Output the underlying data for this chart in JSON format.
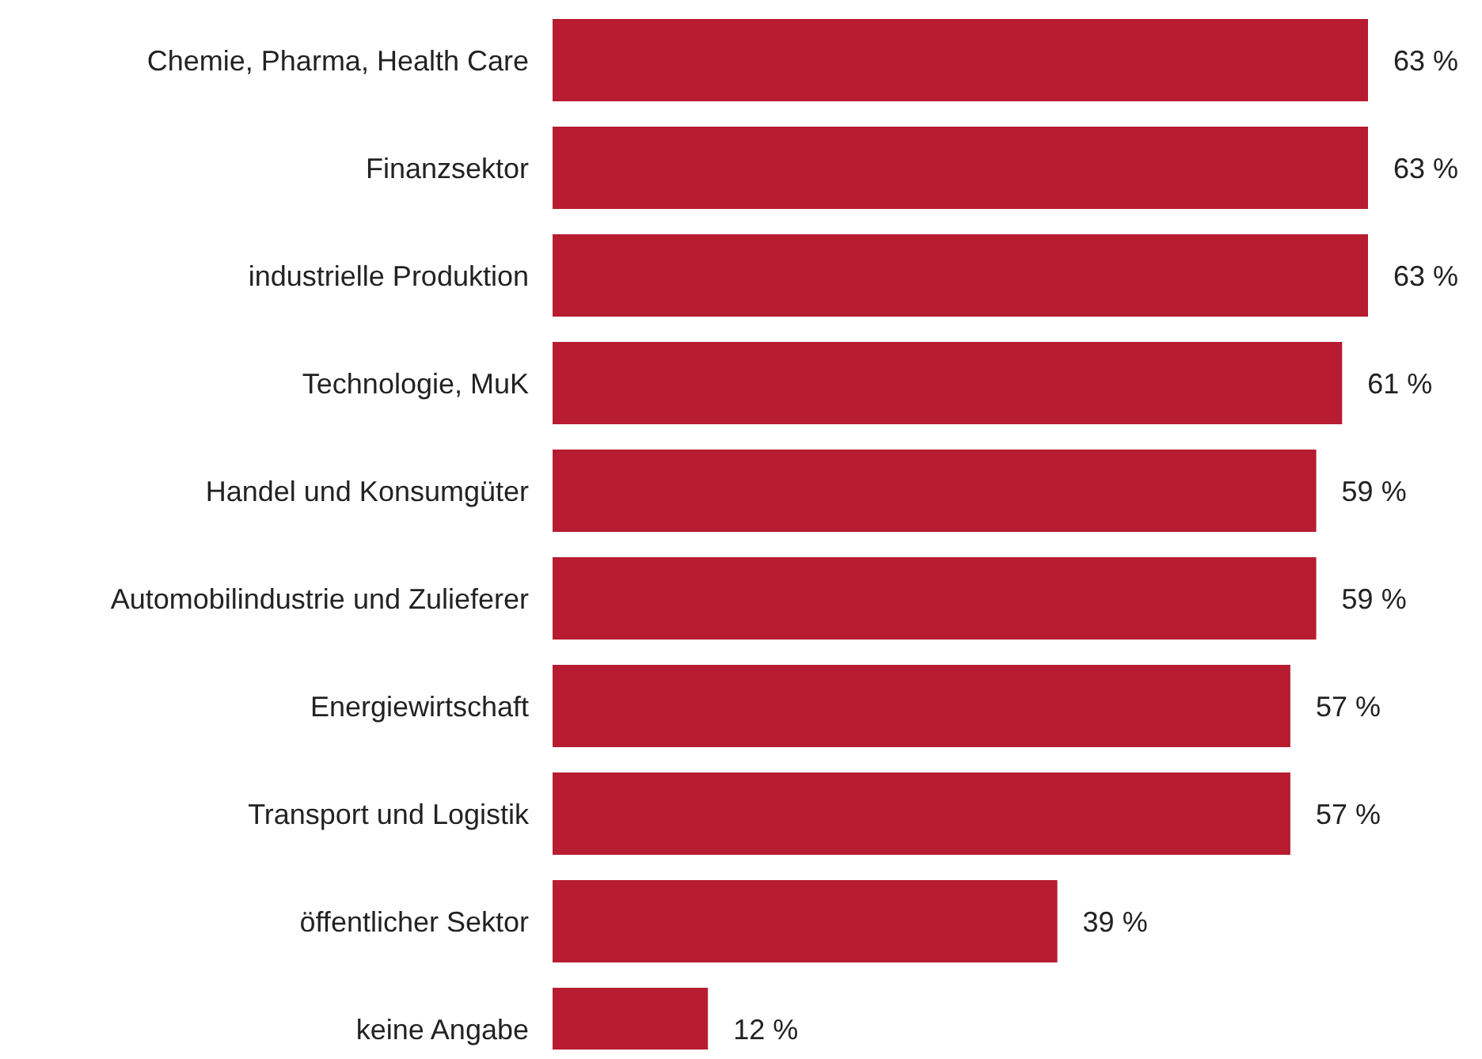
{
  "chart_data": {
    "type": "bar",
    "orientation": "horizontal",
    "categories": [
      "Chemie, Pharma, Health Care",
      "Finanzsektor",
      "industrielle Produktion",
      "Technologie, MuK",
      "Handel und Konsumgüter",
      "Automobilindustrie und Zulieferer",
      "Energiewirtschaft",
      "Transport und Logistik",
      "öffentlicher Sektor",
      "keine Angabe"
    ],
    "values": [
      63,
      63,
      63,
      61,
      59,
      59,
      57,
      57,
      39,
      12
    ],
    "value_labels": [
      "63 %",
      "63 %",
      "63 %",
      "61 %",
      "59 %",
      "59 %",
      "57 %",
      "57 %",
      "39 %",
      "12 %"
    ],
    "color": "#b71c30"
  }
}
